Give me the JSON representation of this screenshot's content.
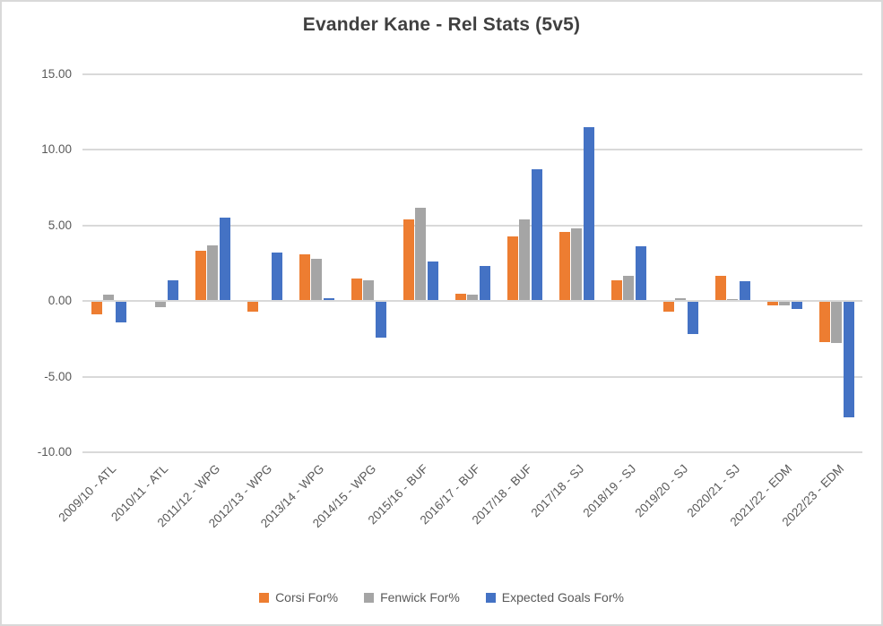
{
  "title": "Evander Kane - Rel Stats (5v5)",
  "colors": {
    "corsi_orange": "#ED7D31",
    "fenwick_gray": "#A5A5A5",
    "xg_blue": "#4472C4",
    "gridline": "#D9D9D9",
    "title_text": "#404040",
    "axis_text": "#595959",
    "background": "#FFFFFF"
  },
  "chart_data": {
    "type": "bar",
    "title": "Evander Kane - Rel Stats (5v5)",
    "xlabel": "",
    "ylabel": "",
    "ylim": [
      -10,
      15
    ],
    "yticks": [
      15,
      10,
      5,
      0,
      -5,
      -10
    ],
    "ytick_labels": [
      "15.00",
      "10.00",
      "5.00",
      "0.00",
      "-5.00",
      "-10.00"
    ],
    "grid": true,
    "legend_position": "bottom",
    "categories": [
      "2009/10 - ATL",
      "2010/11 - ATL",
      "2011/12 - WPG",
      "2012/13 - WPG",
      "2013/14 - WPG",
      "2014/15 - WPG",
      "2015/16 - BUF",
      "2016/17 - BUF",
      "2017/18 - BUF",
      "2017/18 - SJ",
      "2018/19 - SJ",
      "2019/20 - SJ",
      "2020/21 - SJ",
      "2021/22 - EDM",
      "2022/23 - EDM"
    ],
    "series": [
      {
        "name": "Corsi For%",
        "color": "#ED7D31",
        "values": [
          -0.9,
          0.0,
          3.3,
          -0.7,
          3.1,
          1.5,
          5.4,
          0.5,
          4.3,
          4.6,
          1.4,
          -0.7,
          1.7,
          -0.3,
          -2.7
        ]
      },
      {
        "name": "Fenwick For%",
        "color": "#A5A5A5",
        "values": [
          0.4,
          -0.4,
          3.7,
          0.0,
          2.8,
          1.4,
          6.2,
          0.4,
          5.4,
          4.8,
          1.7,
          0.2,
          0.1,
          -0.3,
          -2.8
        ]
      },
      {
        "name": "Expected Goals For%",
        "color": "#4472C4",
        "values": [
          -1.4,
          1.4,
          5.5,
          3.2,
          0.2,
          -2.4,
          2.6,
          2.3,
          8.7,
          11.5,
          3.6,
          -2.2,
          1.3,
          -0.5,
          -7.7
        ]
      }
    ]
  }
}
